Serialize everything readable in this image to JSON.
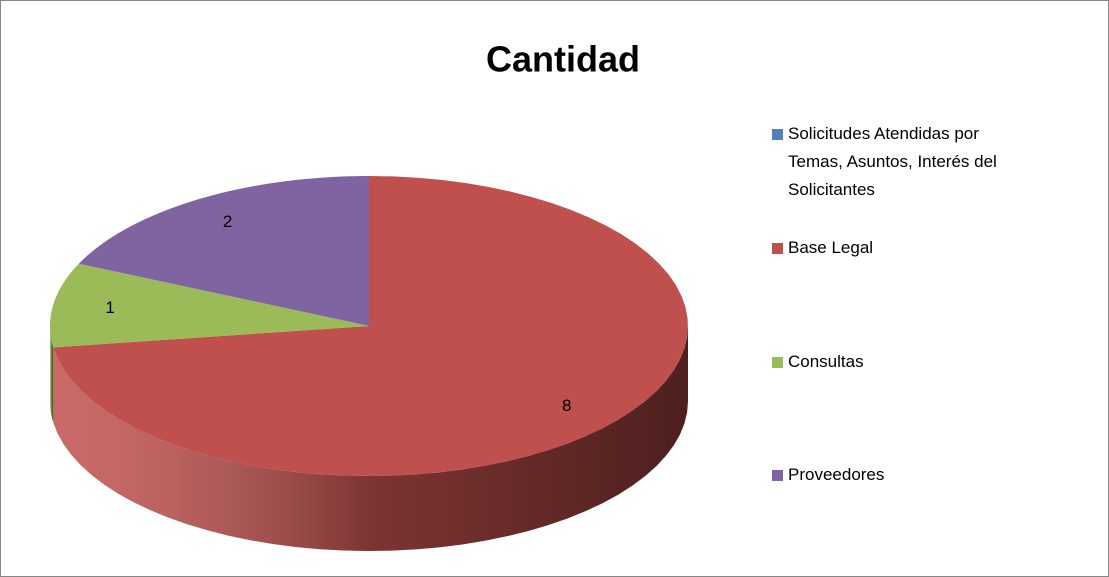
{
  "chart_data": {
    "type": "pie3d",
    "title": "Cantidad",
    "categories": [
      "Solicitudes Atendidas por Temas, Asuntos, Interés del Solicitantes",
      "Base Legal",
      "Consultas",
      "Proveedores"
    ],
    "values": [
      null,
      8,
      1,
      2
    ],
    "colors": [
      "#4f81bd",
      "#c0504d",
      "#9bbb59",
      "#8064a2"
    ],
    "legend": "right"
  }
}
